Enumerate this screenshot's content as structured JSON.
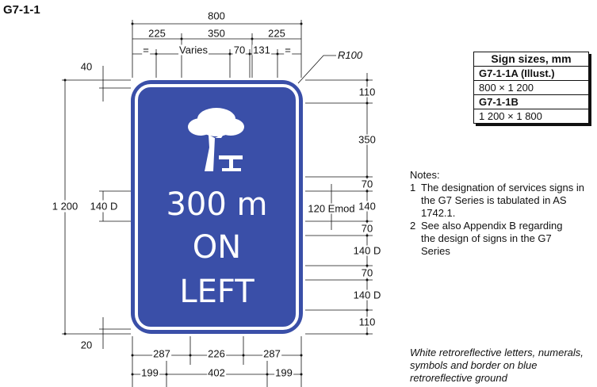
{
  "drawing_id": "G7-1-1",
  "radius_label": "R100",
  "sign": {
    "distance": "300 m",
    "line2": "ON",
    "line3": "LEFT",
    "bg_color": "#3a4fa8",
    "symbol": "tree-picnic-table-icon"
  },
  "top_dims": {
    "overall": "800",
    "row2": [
      "225",
      "350",
      "225"
    ],
    "row3": [
      "=",
      "Varies",
      "70",
      "131",
      "="
    ]
  },
  "left_dims": {
    "top_margin": "40",
    "height": "1 200",
    "symbol_text": "140 D",
    "bottom_margin": "20"
  },
  "right_dims": [
    "110",
    "350",
    "70",
    "140",
    "70",
    "140 D",
    "70",
    "140 D",
    "110"
  ],
  "right_extra": "120 Emod",
  "bottom_dims": {
    "row1": [
      "287",
      "226",
      "287"
    ],
    "row2": [
      "199",
      "402",
      "199"
    ]
  },
  "sizes_table": {
    "header": "Sign sizes, mm",
    "rows": [
      {
        "code": "G7-1-1A (Illust.)",
        "size": "800 × 1 200"
      },
      {
        "code": "G7-1-1B",
        "size": "1 200 × 1 800"
      }
    ]
  },
  "notes": {
    "title": "Notes:",
    "items": [
      {
        "num": "1",
        "text": "The designation of services signs in the G7 Series is tabulated in AS 1742.1."
      },
      {
        "num": "2",
        "text": "See also Appendix B regarding the design  of signs in the G7 Series"
      }
    ]
  },
  "caption": "White retroreflective letters, numerals, symbols and border on blue retroreflective ground"
}
